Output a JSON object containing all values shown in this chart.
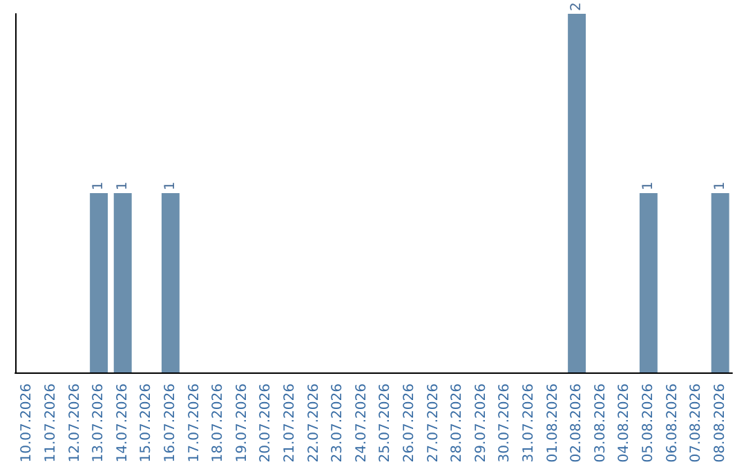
{
  "chart_data": {
    "type": "bar",
    "categories": [
      "10.07.2026",
      "11.07.2026",
      "12.07.2026",
      "13.07.2026",
      "14.07.2026",
      "15.07.2026",
      "16.07.2026",
      "17.07.2026",
      "18.07.2026",
      "19.07.2026",
      "20.07.2026",
      "21.07.2026",
      "22.07.2026",
      "23.07.2026",
      "24.07.2026",
      "25.07.2026",
      "26.07.2026",
      "27.07.2026",
      "28.07.2026",
      "29.07.2026",
      "30.07.2026",
      "31.07.2026",
      "01.08.2026",
      "02.08.2026",
      "03.08.2026",
      "04.08.2026",
      "05.08.2026",
      "06.08.2026",
      "07.08.2026",
      "08.08.2026"
    ],
    "values": [
      0,
      0,
      0,
      1,
      1,
      0,
      1,
      0,
      0,
      0,
      0,
      0,
      0,
      0,
      0,
      0,
      0,
      0,
      0,
      0,
      0,
      0,
      0,
      2,
      0,
      0,
      1,
      0,
      0,
      1
    ],
    "value_labels": [
      null,
      null,
      null,
      "1",
      "1",
      null,
      "1",
      null,
      null,
      null,
      null,
      null,
      null,
      null,
      null,
      null,
      null,
      null,
      null,
      null,
      null,
      null,
      null,
      "2",
      null,
      null,
      "1",
      null,
      null,
      "1"
    ],
    "color": "#6b8fad",
    "tick_labels": "x"
  }
}
